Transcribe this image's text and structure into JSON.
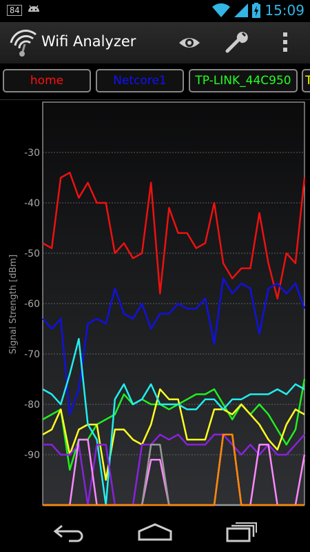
{
  "status_bar": {
    "notification_badge": "84",
    "time": "15:09",
    "icons": [
      "android-icon",
      "wifi-signal-icon",
      "cell-signal-icon",
      "battery-charging-icon"
    ]
  },
  "action_bar": {
    "title": "Wifi Analyzer",
    "icons": [
      "wifi-analyzer-app-icon",
      "eye-icon",
      "wrench-icon",
      "overflow-menu-icon"
    ]
  },
  "networks": [
    {
      "ssid": "home",
      "color": "#ff1010"
    },
    {
      "ssid": "Netcore1",
      "color": "#1010ff"
    },
    {
      "ssid": "TP-LINK_44C950",
      "color": "#22ff22"
    },
    {
      "ssid": "T",
      "color": "#ffff00"
    }
  ],
  "chart_data": {
    "type": "line",
    "ylabel": "Signal Strength [dBm]",
    "yticks": [
      -30,
      -40,
      -50,
      -60,
      -70,
      -80,
      -90
    ],
    "ylim": [
      -100,
      -20
    ],
    "grid": true,
    "series": [
      {
        "name": "home",
        "color": "#ee1111",
        "values": [
          -48,
          -49,
          -35,
          -34,
          -39,
          -36,
          -40,
          -40,
          -50,
          -48,
          -51,
          -50,
          -36,
          -58,
          -41,
          -46,
          -46,
          -49,
          -48,
          -40,
          -52,
          -55,
          -53,
          -53,
          -42,
          -52,
          -59,
          -50,
          -52,
          -35
        ]
      },
      {
        "name": "Netcore1",
        "color": "#1111dd",
        "values": [
          -63,
          -65,
          -63,
          -82,
          -77,
          -64,
          -63,
          -64,
          -57,
          -62,
          -63,
          -60,
          -65,
          -62,
          -62,
          -60,
          -61,
          -61,
          -59,
          -68,
          -55,
          -58,
          -56,
          -57,
          -66,
          -57,
          -56,
          -58,
          -56,
          -61
        ]
      },
      {
        "name": "TP-LINK_44C950",
        "color": "#22ee22",
        "values": [
          -83,
          -82,
          -81,
          -93,
          -87,
          -87,
          -84,
          -83,
          -82,
          -78,
          -80,
          -79,
          -80,
          -80,
          -81,
          -80,
          -79,
          -78,
          -78,
          -77,
          -80,
          -83,
          -80,
          -82,
          -80,
          -82,
          -85,
          -88,
          -85,
          -75
        ]
      },
      {
        "name": "T",
        "color": "#ffff22",
        "values": [
          -86,
          -85,
          -81,
          -90,
          -85,
          -84,
          -84,
          -95,
          -85,
          -85,
          -87,
          -88,
          -84,
          -77,
          -79,
          -79,
          -87,
          -87,
          -87,
          -81,
          -81,
          -82,
          -80,
          -82,
          -84,
          -87,
          -89,
          -84,
          -81,
          -82
        ]
      },
      {
        "name": "cyan",
        "color": "#22eeee",
        "values": [
          -77,
          -78,
          -80,
          -74,
          -67,
          -84,
          -87,
          -100,
          -79,
          -76,
          -80,
          -79,
          -76,
          -80,
          -80,
          -80,
          -81,
          -81,
          -79,
          -79,
          -81,
          -79,
          -79,
          -78,
          -78,
          -78,
          -77,
          -78,
          -76,
          -77
        ]
      },
      {
        "name": "purple",
        "color": "#8822dd",
        "values": [
          -88,
          -88,
          -90,
          -90,
          -88,
          -100,
          -88,
          -88,
          -100,
          -100,
          -100,
          -88,
          -88,
          -86,
          -87,
          -86,
          -88,
          -88,
          -88,
          -86,
          -86,
          -88,
          -90,
          -88,
          -90,
          -88,
          -90,
          -90,
          -88,
          -86
        ]
      },
      {
        "name": "pink",
        "color": "#ff88ff",
        "values": [
          -100,
          -100,
          -100,
          -100,
          -87,
          -87,
          -100,
          -100,
          -100,
          -100,
          -100,
          -100,
          -91,
          -91,
          -100,
          -100,
          -100,
          -100,
          -100,
          -100,
          -86,
          -86,
          -100,
          -100,
          -88,
          -88,
          -100,
          -100,
          -100,
          -90
        ]
      },
      {
        "name": "gray",
        "color": "#999999",
        "values": [
          -100,
          -100,
          -100,
          -100,
          -100,
          -100,
          -100,
          -100,
          -100,
          -100,
          -100,
          -100,
          -88,
          -88,
          -100,
          -100,
          -100,
          -100,
          -100,
          -100,
          -100,
          -100,
          -100,
          -100,
          -100,
          -100,
          -100,
          -100,
          -100,
          -100
        ]
      },
      {
        "name": "orange",
        "color": "#ff8800",
        "values": [
          -100,
          -100,
          -100,
          -100,
          -100,
          -100,
          -100,
          -100,
          -100,
          -100,
          -100,
          -100,
          -100,
          -100,
          -100,
          -100,
          -100,
          -100,
          -100,
          -100,
          -86,
          -86,
          -100,
          -100,
          -100,
          -100,
          -100,
          -100,
          -100,
          -100
        ]
      }
    ]
  }
}
